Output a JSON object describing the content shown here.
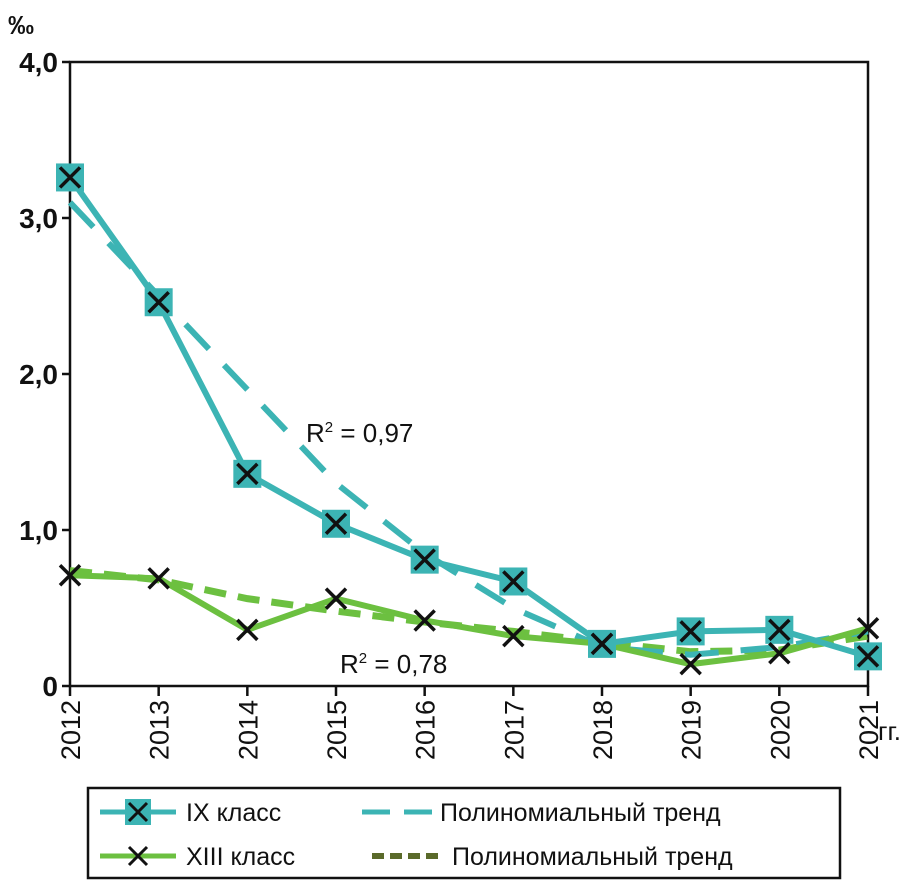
{
  "chart_data": {
    "type": "line",
    "ylabel": "‰",
    "xlabel": "гг.",
    "ylim": [
      0,
      4.0
    ],
    "y_ticks": [
      "0",
      "1,0",
      "2,0",
      "3,0",
      "4,0"
    ],
    "y_tick_values": [
      0,
      1,
      2,
      3,
      4
    ],
    "categories": [
      "2012",
      "2013",
      "2014",
      "2015",
      "2016",
      "2017",
      "2018",
      "2019",
      "2020",
      "2021"
    ],
    "grid": false,
    "legend_position": "bottom",
    "series": [
      {
        "name": "IX класс",
        "color": "#3cb4b4",
        "marker": "x-square",
        "values": [
          3.26,
          2.46,
          1.36,
          1.04,
          0.81,
          0.67,
          0.27,
          0.35,
          0.36,
          0.19
        ]
      },
      {
        "name": "XIII класс",
        "color": "#6cc040",
        "marker": "x",
        "values": [
          0.71,
          0.69,
          0.36,
          0.56,
          0.42,
          0.32,
          0.27,
          0.14,
          0.21,
          0.37
        ]
      }
    ],
    "trends": [
      {
        "name": "Полиномиальный тренд",
        "color": "#3cb4b4",
        "r2_label": "R",
        "r2_sup": "2",
        "r2_value": " = 0,97",
        "values": [
          3.1,
          2.5,
          1.9,
          1.3,
          0.85,
          0.5,
          0.25,
          0.2,
          0.25,
          0.35
        ]
      },
      {
        "name": "Полиномиальный тренд",
        "color": "#5a6a2a",
        "r2_label": "R",
        "r2_sup": "2",
        "r2_value": " = 0,78",
        "values": [
          0.74,
          0.68,
          0.56,
          0.48,
          0.41,
          0.35,
          0.28,
          0.22,
          0.23,
          0.32
        ]
      }
    ]
  }
}
